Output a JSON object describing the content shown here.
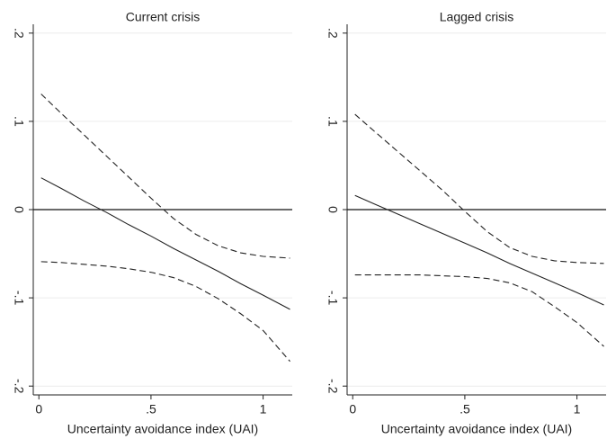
{
  "chart_data": [
    {
      "type": "line",
      "title": "Current crisis",
      "xlabel": "Uncertainty avoidance index (UAI)",
      "x": [
        0.01,
        0.1,
        0.2,
        0.3,
        0.4,
        0.5,
        0.6,
        0.7,
        0.8,
        0.9,
        1.0,
        1.12
      ],
      "series": [
        {
          "color": "#222222",
          "style": "dashed",
          "values": [
            0.131,
            0.109,
            0.085,
            0.061,
            0.037,
            0.013,
            -0.01,
            -0.028,
            -0.041,
            -0.049,
            -0.053,
            -0.055
          ]
        },
        {
          "color": "#222222",
          "style": "solid",
          "values": [
            0.036,
            0.024,
            0.01,
            -0.003,
            -0.017,
            -0.03,
            -0.044,
            -0.057,
            -0.07,
            -0.084,
            -0.097,
            -0.113
          ]
        },
        {
          "color": "#222222",
          "style": "dashed",
          "values": [
            -0.059,
            -0.06,
            -0.062,
            -0.064,
            -0.067,
            -0.071,
            -0.077,
            -0.087,
            -0.101,
            -0.118,
            -0.137,
            -0.172
          ]
        }
      ],
      "xlim": [
        -0.025,
        1.13
      ],
      "ylim": [
        -0.21,
        0.21
      ],
      "xticks": [
        0,
        {
          "value": 0.5,
          "label": ".5"
        },
        1
      ],
      "yticks": [
        {
          "value": 0.2,
          "label": ".2"
        },
        {
          "value": 0.1,
          "label": ".1"
        },
        0,
        {
          "value": -0.1,
          "label": "-.1"
        },
        {
          "value": -0.2,
          "label": "-.2"
        }
      ],
      "reference_line": 0,
      "grid": true
    },
    {
      "type": "line",
      "title": "Lagged crisis",
      "xlabel": "Uncertainty avoidance index (UAI)",
      "x": [
        0.01,
        0.1,
        0.2,
        0.3,
        0.4,
        0.5,
        0.6,
        0.7,
        0.8,
        0.9,
        1.0,
        1.12
      ],
      "series": [
        {
          "color": "#222222",
          "style": "dashed",
          "values": [
            0.108,
            0.088,
            0.066,
            0.044,
            0.022,
            -0.002,
            -0.025,
            -0.043,
            -0.053,
            -0.058,
            -0.06,
            -0.061
          ]
        },
        {
          "color": "#222222",
          "style": "solid",
          "values": [
            0.016,
            0.006,
            -0.005,
            -0.016,
            -0.027,
            -0.038,
            -0.049,
            -0.061,
            -0.072,
            -0.083,
            -0.094,
            -0.108
          ]
        },
        {
          "color": "#222222",
          "style": "dashed",
          "values": [
            -0.074,
            -0.074,
            -0.074,
            -0.074,
            -0.075,
            -0.076,
            -0.078,
            -0.083,
            -0.093,
            -0.11,
            -0.128,
            -0.155
          ]
        }
      ],
      "xlim": [
        -0.025,
        1.13
      ],
      "ylim": [
        -0.21,
        0.21
      ],
      "xticks": [
        0,
        {
          "value": 0.5,
          "label": ".5"
        },
        1
      ],
      "yticks": [
        {
          "value": 0.2,
          "label": ".2"
        },
        {
          "value": 0.1,
          "label": ".1"
        },
        0,
        {
          "value": -0.1,
          "label": "-.1"
        },
        {
          "value": -0.2,
          "label": "-.2"
        }
      ],
      "reference_line": 0,
      "grid": true
    }
  ]
}
